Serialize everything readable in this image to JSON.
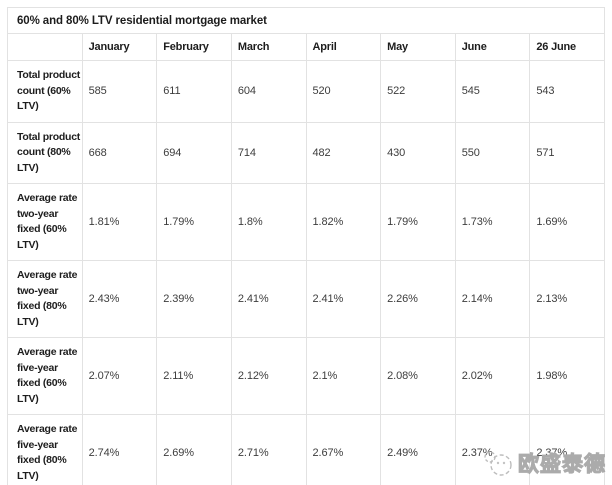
{
  "chart_data": {
    "type": "table",
    "title": "60% and 80% LTV residential mortgage market",
    "columns": [
      "January",
      "February",
      "March",
      "April",
      "May",
      "June",
      "26 June"
    ],
    "rows": [
      {
        "label": "Total product\ncount (60%\nLTV)",
        "values": [
          "585",
          "611",
          "604",
          "520",
          "522",
          "545",
          "543"
        ]
      },
      {
        "label": "Total product\ncount (80%\nLTV)",
        "values": [
          "668",
          "694",
          "714",
          "482",
          "430",
          "550",
          "571"
        ]
      },
      {
        "label": "Average rate\ntwo-year\nfixed (60%\nLTV)",
        "values": [
          "1.81%",
          "1.79%",
          "1.8%",
          "1.82%",
          "1.79%",
          "1.73%",
          "1.69%"
        ]
      },
      {
        "label": "Average rate\ntwo-year\nfixed (80%\nLTV)",
        "values": [
          "2.43%",
          "2.39%",
          "2.41%",
          "2.41%",
          "2.26%",
          "2.14%",
          "2.13%"
        ]
      },
      {
        "label": "Average rate\nfive-year\nfixed (60%\nLTV)",
        "values": [
          "2.07%",
          "2.11%",
          "2.12%",
          "2.1%",
          "2.08%",
          "2.02%",
          "1.98%"
        ]
      },
      {
        "label": "Average rate\nfive-year\nfixed (80%\nLTV)",
        "values": [
          "2.74%",
          "2.69%",
          "2.71%",
          "2.67%",
          "2.49%",
          "2.37%",
          "2.37%"
        ]
      }
    ]
  },
  "watermark": {
    "text": "欧盛泰德",
    "icon": "circular-logo-icon",
    "color": "#b5b5b5"
  },
  "colors": {
    "heading_text": "#1d1d1d",
    "value_text": "#3d3d3d",
    "border": "#e2e2e2",
    "background": "#ffffff"
  }
}
